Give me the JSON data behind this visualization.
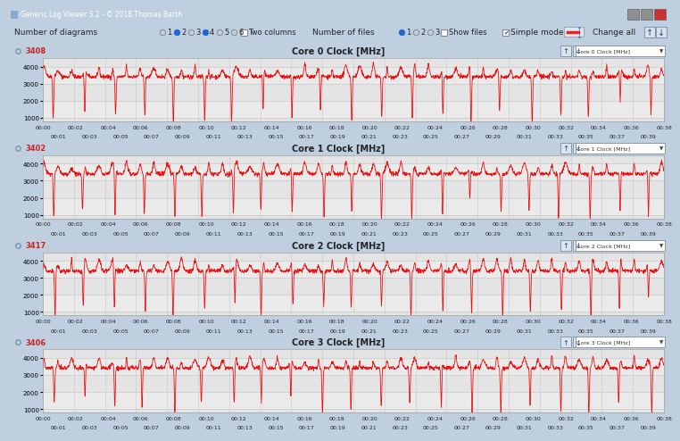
{
  "title_bar": "Generic Log Viewer 3.2 - © 2018 Thomas Barth",
  "window_bg": "#c0cfe0",
  "titlebar_bg": "#7090b0",
  "toolbar_bg": "#dce8f0",
  "panel_separator_bg": "#b8ccdc",
  "chart_bg": "#e8e8e8",
  "chart_plot_bg": "#f4f4f4",
  "grid_color": "#d0d0d0",
  "line_color": "#ee1111",
  "cores": [
    {
      "label": "Core 0 Clock [MHz]",
      "peak": "3408",
      "combo": "Core 0 Clock [MHz]"
    },
    {
      "label": "Core 1 Clock [MHz]",
      "peak": "3402",
      "combo": "Core 1 Clock [MHz]"
    },
    {
      "label": "Core 2 Clock [MHz]",
      "peak": "3417",
      "combo": "Core 2 Clock [MHz]"
    },
    {
      "label": "Core 3 Clock [MHz]",
      "peak": "3406",
      "combo": "Core 3 Clock [MHz]"
    }
  ],
  "ylim": [
    800,
    4500
  ],
  "yticks": [
    1000,
    2000,
    3000,
    4000
  ],
  "x_major_labels": [
    "00:00",
    "00:02",
    "00:04",
    "00:06",
    "00:08",
    "00:10",
    "00:12",
    "00:14",
    "00:16",
    "00:18",
    "00:20",
    "00:22",
    "00:24",
    "00:26",
    "00:28",
    "00:30",
    "00:32",
    "00:34",
    "00:36",
    "00:38"
  ],
  "x_minor_labels": [
    "00:01",
    "00:03",
    "00:05",
    "00:07",
    "00:09",
    "00:11",
    "00:13",
    "00:15",
    "00:17",
    "00:19",
    "00:21",
    "00:23",
    "00:25",
    "00:27",
    "00:29",
    "00:31",
    "00:33",
    "00:35",
    "00:37",
    "00:39"
  ],
  "n_points": 2400
}
